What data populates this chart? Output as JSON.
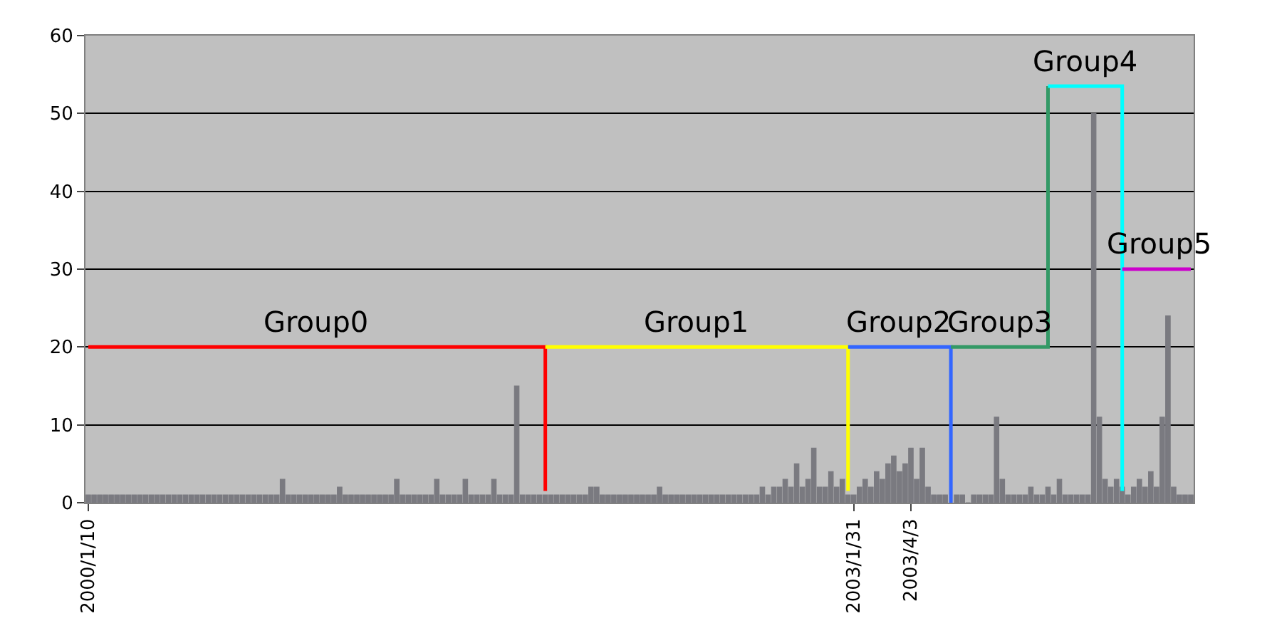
{
  "chart_data": {
    "type": "bar",
    "categories": [
      "2000/1/10",
      null,
      null,
      null,
      null,
      null,
      null,
      null,
      null,
      null,
      null,
      null,
      null,
      null,
      null,
      null,
      null,
      null,
      null,
      null,
      null,
      null,
      null,
      null,
      null,
      null,
      null,
      null,
      null,
      null,
      null,
      null,
      null,
      null,
      null,
      null,
      null,
      null,
      null,
      null,
      null,
      null,
      null,
      null,
      null,
      null,
      null,
      null,
      null,
      null,
      null,
      null,
      null,
      null,
      null,
      null,
      null,
      null,
      null,
      null,
      null,
      null,
      null,
      null,
      null,
      null,
      null,
      null,
      null,
      null,
      null,
      null,
      null,
      null,
      null,
      null,
      null,
      null,
      null,
      null,
      null,
      null,
      null,
      null,
      null,
      null,
      null,
      null,
      null,
      null,
      null,
      null,
      null,
      null,
      null,
      null,
      null,
      null,
      null,
      null,
      null,
      null,
      null,
      null,
      null,
      null,
      null,
      null,
      null,
      null,
      null,
      null,
      null,
      null,
      null,
      null,
      null,
      null,
      null,
      null,
      null,
      null,
      null,
      null,
      null,
      null,
      null,
      null,
      null,
      null,
      null,
      null,
      null,
      null,
      "2003/1/31",
      null,
      null,
      null,
      null,
      null,
      null,
      null,
      null,
      null,
      "2003/4/3",
      null,
      null,
      null,
      null,
      null,
      null,
      null,
      null,
      null,
      null,
      null,
      null,
      null,
      null,
      null,
      null,
      null,
      null,
      null,
      null,
      null,
      null,
      null,
      null,
      null,
      null,
      null,
      null,
      null,
      null,
      null,
      null,
      null,
      null,
      null,
      null,
      null,
      null,
      null,
      null,
      null,
      null,
      null,
      null,
      null,
      null,
      null,
      null,
      null
    ],
    "series": [
      {
        "color": "#7a7a80",
        "values": [
          1,
          1,
          1,
          1,
          1,
          1,
          1,
          1,
          1,
          1,
          1,
          1,
          1,
          1,
          1,
          1,
          1,
          1,
          1,
          1,
          1,
          1,
          1,
          1,
          1,
          1,
          1,
          1,
          1,
          1,
          1,
          1,
          1,
          1,
          3,
          1,
          1,
          1,
          1,
          1,
          1,
          1,
          1,
          1,
          2,
          1,
          1,
          1,
          1,
          1,
          1,
          1,
          1,
          1,
          3,
          1,
          1,
          1,
          1,
          1,
          1,
          3,
          1,
          1,
          1,
          1,
          3,
          1,
          1,
          1,
          1,
          3,
          1,
          1,
          1,
          15,
          1,
          1,
          1,
          1,
          1,
          1,
          1,
          1,
          1,
          1,
          1,
          1,
          2,
          2,
          1,
          1,
          1,
          1,
          1,
          1,
          1,
          1,
          1,
          1,
          2,
          1,
          1,
          1,
          1,
          1,
          1,
          1,
          1,
          1,
          1,
          1,
          1,
          1,
          1,
          1,
          1,
          1,
          2,
          1,
          2,
          2,
          3,
          2,
          5,
          2,
          3,
          7,
          2,
          2,
          4,
          2,
          3,
          1,
          1,
          2,
          3,
          2,
          4,
          3,
          5,
          6,
          4,
          5,
          7,
          3,
          7,
          2,
          1,
          1,
          1,
          null,
          1,
          1,
          0,
          1,
          1,
          1,
          1,
          11,
          3,
          1,
          1,
          1,
          1,
          2,
          1,
          1,
          2,
          1,
          3,
          1,
          1,
          1,
          1,
          1,
          50,
          11,
          3,
          2,
          3,
          2,
          1,
          2,
          3,
          2,
          4,
          2,
          11,
          24,
          2,
          1,
          1,
          1
        ]
      },
      {
        "type": "step",
        "name": "Group0",
        "color": "#ff0000",
        "values": [
          20,
          20,
          20,
          20,
          20,
          20,
          20,
          20,
          20,
          20,
          20,
          20,
          20,
          20,
          20,
          20,
          20,
          20,
          20,
          20,
          20,
          20,
          20,
          20,
          20,
          20,
          20,
          20,
          20,
          20,
          20,
          20,
          20,
          20,
          20,
          20,
          20,
          20,
          20,
          20,
          20,
          20,
          20,
          20,
          20,
          20,
          20,
          20,
          20,
          20,
          20,
          20,
          20,
          20,
          20,
          20,
          20,
          20,
          20,
          20,
          20,
          20,
          20,
          20,
          20,
          20,
          20,
          20,
          20,
          20,
          20,
          20,
          20,
          20,
          20,
          20,
          20,
          20,
          20,
          20,
          1.5,
          null,
          null,
          null,
          null,
          null,
          null,
          null,
          null,
          null,
          null,
          null,
          null,
          null,
          null,
          null,
          null,
          null,
          null,
          null,
          null,
          null,
          null,
          null,
          null,
          null,
          null,
          null,
          null,
          null,
          null,
          null,
          null,
          null,
          null,
          null,
          null,
          null,
          null,
          null,
          null,
          null,
          null,
          null,
          null,
          null,
          null,
          null,
          null,
          null,
          null,
          null,
          null,
          null,
          null,
          null,
          null,
          null,
          null,
          null,
          null,
          null,
          null,
          null,
          null,
          null,
          null,
          null,
          null,
          null,
          null,
          null,
          null,
          null,
          null,
          null,
          null,
          null,
          null,
          null,
          null,
          null,
          null,
          null,
          null,
          null,
          null,
          null,
          null,
          null,
          null,
          null,
          null,
          null,
          null,
          null,
          null,
          null,
          null,
          null,
          null,
          null,
          null,
          null,
          null,
          null,
          null,
          null,
          null,
          null,
          null,
          null,
          null,
          null
        ]
      },
      {
        "type": "step",
        "name": "Group1",
        "color": "#ffff00",
        "values": [
          null,
          null,
          null,
          null,
          null,
          null,
          null,
          null,
          null,
          null,
          null,
          null,
          null,
          null,
          null,
          null,
          null,
          null,
          null,
          null,
          null,
          null,
          null,
          null,
          null,
          null,
          null,
          null,
          null,
          null,
          null,
          null,
          null,
          null,
          null,
          null,
          null,
          null,
          null,
          null,
          null,
          null,
          null,
          null,
          null,
          null,
          null,
          null,
          null,
          null,
          null,
          null,
          null,
          null,
          null,
          null,
          null,
          null,
          null,
          null,
          null,
          null,
          null,
          null,
          null,
          null,
          null,
          null,
          null,
          null,
          null,
          null,
          null,
          null,
          null,
          null,
          null,
          null,
          null,
          null,
          20,
          20,
          20,
          20,
          20,
          20,
          20,
          20,
          20,
          20,
          20,
          20,
          20,
          20,
          20,
          20,
          20,
          20,
          20,
          20,
          20,
          20,
          20,
          20,
          20,
          20,
          20,
          20,
          20,
          20,
          20,
          20,
          20,
          20,
          20,
          20,
          20,
          20,
          20,
          20,
          20,
          20,
          20,
          20,
          20,
          20,
          20,
          20,
          20,
          20,
          20,
          20,
          20,
          1.5,
          null,
          null,
          null,
          null,
          null,
          null,
          null,
          null,
          null,
          null,
          null,
          null,
          null,
          null,
          null,
          null,
          null,
          null,
          null,
          null,
          null,
          null,
          null,
          null,
          null,
          null,
          null,
          null,
          null,
          null,
          null,
          null,
          null,
          null,
          null,
          null,
          null,
          null,
          null,
          null,
          null,
          null,
          null,
          null,
          null,
          null,
          null,
          null,
          null,
          null,
          null,
          null,
          null,
          null,
          null,
          null,
          null,
          null,
          null,
          null
        ]
      },
      {
        "type": "step",
        "name": "Group2",
        "color": "#3366ff",
        "values": [
          null,
          null,
          null,
          null,
          null,
          null,
          null,
          null,
          null,
          null,
          null,
          null,
          null,
          null,
          null,
          null,
          null,
          null,
          null,
          null,
          null,
          null,
          null,
          null,
          null,
          null,
          null,
          null,
          null,
          null,
          null,
          null,
          null,
          null,
          null,
          null,
          null,
          null,
          null,
          null,
          null,
          null,
          null,
          null,
          null,
          null,
          null,
          null,
          null,
          null,
          null,
          null,
          null,
          null,
          null,
          null,
          null,
          null,
          null,
          null,
          null,
          null,
          null,
          null,
          null,
          null,
          null,
          null,
          null,
          null,
          null,
          null,
          null,
          null,
          null,
          null,
          null,
          null,
          null,
          null,
          null,
          null,
          null,
          null,
          null,
          null,
          null,
          null,
          null,
          null,
          null,
          null,
          null,
          null,
          null,
          null,
          null,
          null,
          null,
          null,
          null,
          null,
          null,
          null,
          null,
          null,
          null,
          null,
          null,
          null,
          null,
          null,
          null,
          null,
          null,
          null,
          null,
          null,
          null,
          null,
          null,
          null,
          null,
          null,
          null,
          null,
          null,
          null,
          null,
          null,
          null,
          null,
          null,
          20,
          20,
          20,
          20,
          20,
          20,
          20,
          20,
          20,
          20,
          20,
          20,
          20,
          20,
          20,
          20,
          20,
          20,
          0,
          null,
          null,
          null,
          null,
          null,
          null,
          null,
          null,
          null,
          null,
          null,
          null,
          null,
          null,
          null,
          null,
          null,
          null,
          null,
          null,
          null,
          null,
          null,
          null,
          null,
          null,
          null,
          null,
          null,
          null,
          null,
          null,
          null,
          null,
          null,
          null,
          null,
          null,
          null,
          null,
          null,
          null
        ]
      },
      {
        "type": "step",
        "name": "Group3",
        "color": "#339966",
        "values": [
          null,
          null,
          null,
          null,
          null,
          null,
          null,
          null,
          null,
          null,
          null,
          null,
          null,
          null,
          null,
          null,
          null,
          null,
          null,
          null,
          null,
          null,
          null,
          null,
          null,
          null,
          null,
          null,
          null,
          null,
          null,
          null,
          null,
          null,
          null,
          null,
          null,
          null,
          null,
          null,
          null,
          null,
          null,
          null,
          null,
          null,
          null,
          null,
          null,
          null,
          null,
          null,
          null,
          null,
          null,
          null,
          null,
          null,
          null,
          null,
          null,
          null,
          null,
          null,
          null,
          null,
          null,
          null,
          null,
          null,
          null,
          null,
          null,
          null,
          null,
          null,
          null,
          null,
          null,
          null,
          null,
          null,
          null,
          null,
          null,
          null,
          null,
          null,
          null,
          null,
          null,
          null,
          null,
          null,
          null,
          null,
          null,
          null,
          null,
          null,
          null,
          null,
          null,
          null,
          null,
          null,
          null,
          null,
          null,
          null,
          null,
          null,
          null,
          null,
          null,
          null,
          null,
          null,
          null,
          null,
          null,
          null,
          null,
          null,
          null,
          null,
          null,
          null,
          null,
          null,
          null,
          null,
          null,
          null,
          null,
          null,
          null,
          null,
          null,
          null,
          null,
          null,
          null,
          null,
          null,
          null,
          null,
          null,
          null,
          null,
          null,
          20,
          20,
          20,
          20,
          20,
          20,
          20,
          20,
          20,
          20,
          20,
          20,
          20,
          20,
          20,
          20,
          20,
          53.5,
          null,
          null,
          null,
          null,
          null,
          null,
          null,
          null,
          null,
          null,
          null,
          null,
          null,
          null,
          null,
          null,
          null,
          null,
          null,
          null,
          null,
          null,
          null,
          null,
          null
        ]
      },
      {
        "type": "step",
        "name": "Group4",
        "color": "#00ffff",
        "values": [
          null,
          null,
          null,
          null,
          null,
          null,
          null,
          null,
          null,
          null,
          null,
          null,
          null,
          null,
          null,
          null,
          null,
          null,
          null,
          null,
          null,
          null,
          null,
          null,
          null,
          null,
          null,
          null,
          null,
          null,
          null,
          null,
          null,
          null,
          null,
          null,
          null,
          null,
          null,
          null,
          null,
          null,
          null,
          null,
          null,
          null,
          null,
          null,
          null,
          null,
          null,
          null,
          null,
          null,
          null,
          null,
          null,
          null,
          null,
          null,
          null,
          null,
          null,
          null,
          null,
          null,
          null,
          null,
          null,
          null,
          null,
          null,
          null,
          null,
          null,
          null,
          null,
          null,
          null,
          null,
          null,
          null,
          null,
          null,
          null,
          null,
          null,
          null,
          null,
          null,
          null,
          null,
          null,
          null,
          null,
          null,
          null,
          null,
          null,
          null,
          null,
          null,
          null,
          null,
          null,
          null,
          null,
          null,
          null,
          null,
          null,
          null,
          null,
          null,
          null,
          null,
          null,
          null,
          null,
          null,
          null,
          null,
          null,
          null,
          null,
          null,
          null,
          null,
          null,
          null,
          null,
          null,
          null,
          null,
          null,
          null,
          null,
          null,
          null,
          null,
          null,
          null,
          null,
          null,
          null,
          null,
          null,
          null,
          null,
          null,
          null,
          null,
          null,
          null,
          null,
          null,
          null,
          null,
          null,
          null,
          null,
          null,
          null,
          null,
          null,
          null,
          null,
          null,
          53.5,
          53.5,
          53.5,
          53.5,
          53.5,
          53.5,
          53.5,
          53.5,
          53.5,
          53.5,
          53.5,
          53.5,
          53.5,
          1.5,
          null,
          null,
          null,
          null,
          null,
          null,
          null,
          null,
          null,
          null,
          null,
          null
        ]
      },
      {
        "type": "step",
        "name": "Group5",
        "color": "#cc00cc",
        "values": [
          null,
          null,
          null,
          null,
          null,
          null,
          null,
          null,
          null,
          null,
          null,
          null,
          null,
          null,
          null,
          null,
          null,
          null,
          null,
          null,
          null,
          null,
          null,
          null,
          null,
          null,
          null,
          null,
          null,
          null,
          null,
          null,
          null,
          null,
          null,
          null,
          null,
          null,
          null,
          null,
          null,
          null,
          null,
          null,
          null,
          null,
          null,
          null,
          null,
          null,
          null,
          null,
          null,
          null,
          null,
          null,
          null,
          null,
          null,
          null,
          null,
          null,
          null,
          null,
          null,
          null,
          null,
          null,
          null,
          null,
          null,
          null,
          null,
          null,
          null,
          null,
          null,
          null,
          null,
          null,
          null,
          null,
          null,
          null,
          null,
          null,
          null,
          null,
          null,
          null,
          null,
          null,
          null,
          null,
          null,
          null,
          null,
          null,
          null,
          null,
          null,
          null,
          null,
          null,
          null,
          null,
          null,
          null,
          null,
          null,
          null,
          null,
          null,
          null,
          null,
          null,
          null,
          null,
          null,
          null,
          null,
          null,
          null,
          null,
          null,
          null,
          null,
          null,
          null,
          null,
          null,
          null,
          null,
          null,
          null,
          null,
          null,
          null,
          null,
          null,
          null,
          null,
          null,
          null,
          null,
          null,
          null,
          null,
          null,
          null,
          null,
          null,
          null,
          null,
          null,
          null,
          null,
          null,
          null,
          null,
          null,
          null,
          null,
          null,
          null,
          null,
          null,
          null,
          null,
          null,
          null,
          null,
          null,
          null,
          null,
          null,
          null,
          null,
          null,
          null,
          null,
          30,
          30,
          30,
          30,
          30,
          30,
          30,
          30,
          30,
          30,
          30,
          30,
          30
        ]
      }
    ],
    "ylim": [
      0,
      60
    ],
    "yticks": [
      0,
      10,
      20,
      30,
      40,
      50,
      60
    ],
    "grid": "y"
  }
}
